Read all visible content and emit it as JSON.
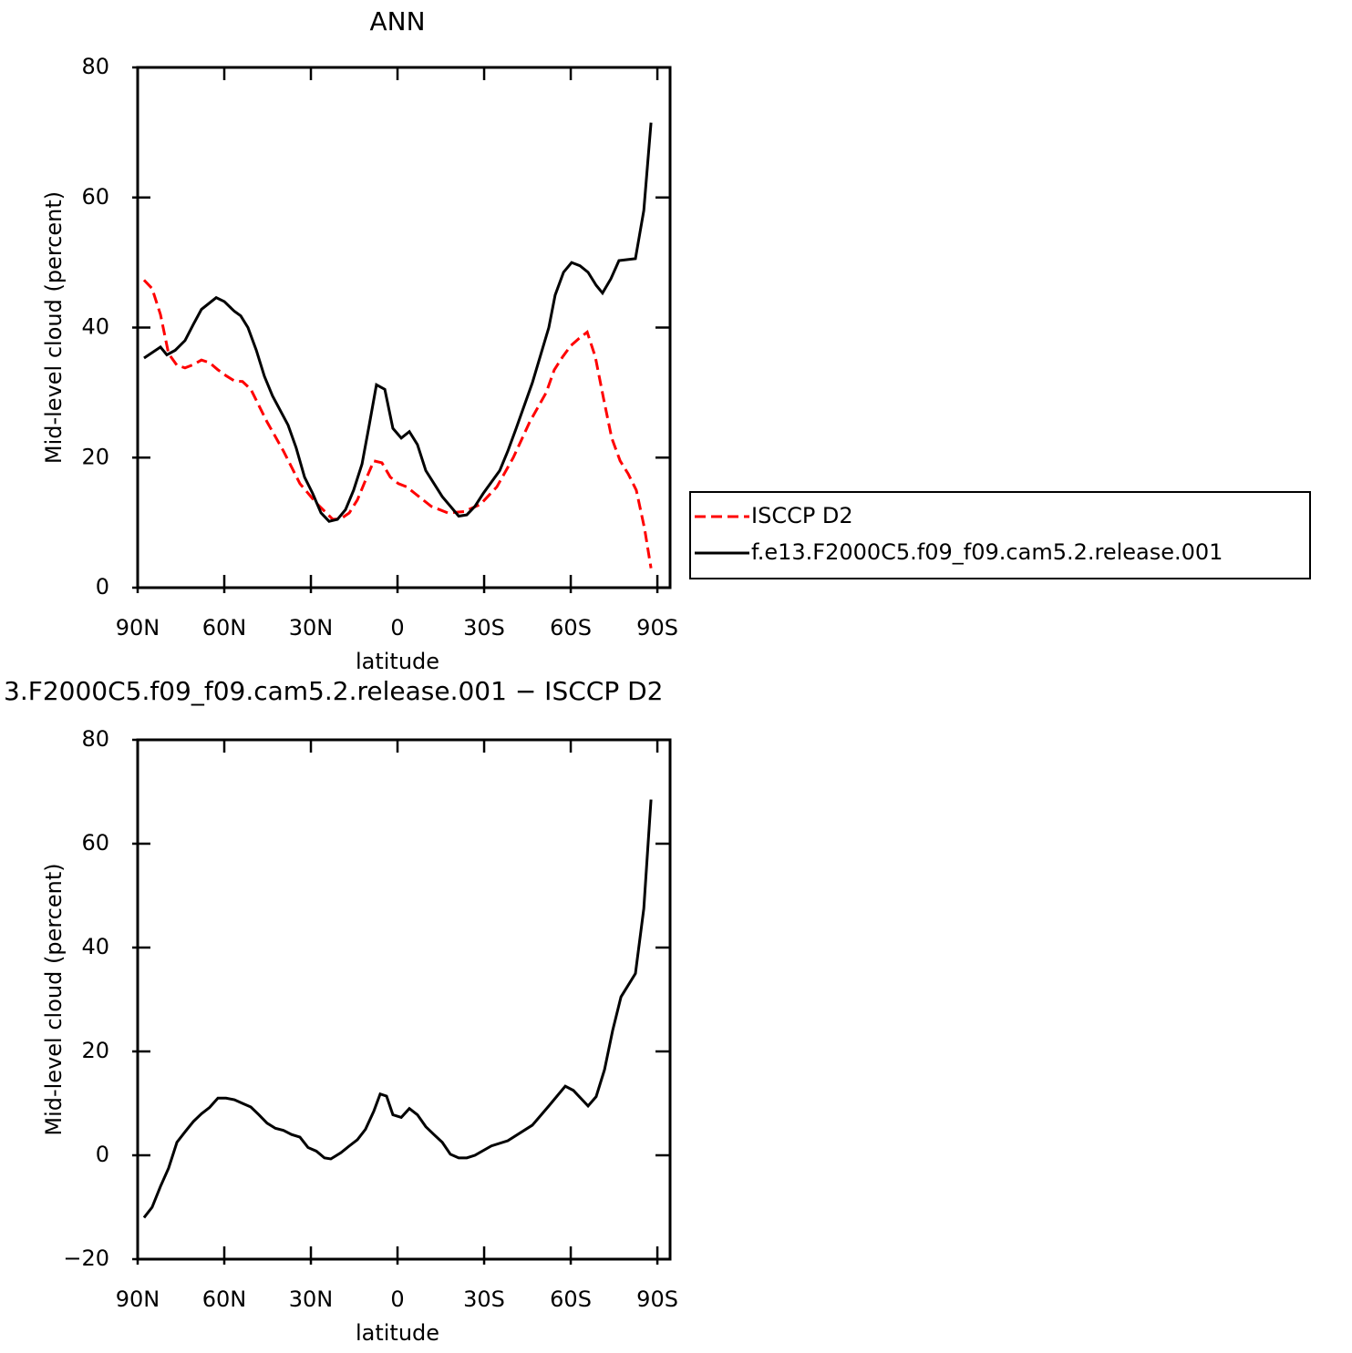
{
  "chart_data": [
    {
      "type": "line",
      "title": "ANN",
      "xlabel": "latitude",
      "ylabel": "Mid-level cloud (percent)",
      "xlim": [
        90,
        -94.4
      ],
      "ylim": [
        0,
        80
      ],
      "xticks": [
        {
          "value": 90,
          "label": "90N"
        },
        {
          "value": 60,
          "label": "60N"
        },
        {
          "value": 30,
          "label": "30N"
        },
        0,
        {
          "value": -30,
          "label": "30S"
        },
        {
          "value": -60,
          "label": "60S"
        },
        {
          "value": -90,
          "label": "90S"
        }
      ],
      "yticks": [
        0,
        20,
        40,
        60,
        80
      ],
      "legend": "outside-right",
      "series": [
        {
          "name": "ISCCP D2",
          "color": "#ff0000",
          "dash": true,
          "x": [
            87.8,
            85,
            82.1,
            79.3,
            76.4,
            73.6,
            70.7,
            67.9,
            65.1,
            62.2,
            59.4,
            56.5,
            53.7,
            50.8,
            48,
            45.2,
            39.5,
            33.8,
            28.1,
            22.4,
            19.6,
            16.7,
            13.9,
            11.1,
            8.2,
            5.4,
            2.5,
            -0.3,
            -3.2,
            -6,
            -11.7,
            -17.4,
            -23.1,
            -28.7,
            -34.4,
            -40.1,
            -45.8,
            -51.5,
            -54.3,
            -57.2,
            -60,
            -62.8,
            -65.7,
            -68.5,
            -71.4,
            -74.2,
            -77.1,
            -79.9,
            -82.7,
            -85.6,
            -87.8
          ],
          "values": [
            47.3,
            46,
            42,
            36,
            34.2,
            33.8,
            34.3,
            35,
            34.6,
            33.5,
            32.6,
            31.8,
            31.7,
            30.5,
            28,
            25.5,
            21,
            16,
            13,
            10.5,
            10.6,
            11.5,
            13.5,
            16.5,
            19.5,
            19.2,
            17,
            16,
            15.5,
            14.5,
            12.5,
            11.5,
            11.7,
            12.8,
            15.5,
            20,
            25.5,
            30,
            33.5,
            35.5,
            37.2,
            38.3,
            39.3,
            35.5,
            29,
            23,
            19.5,
            17.5,
            15,
            9,
            3
          ]
        },
        {
          "name": "f.e13.F2000C5.f09_f09.cam5.2.release.001",
          "color": "#000000",
          "dash": false,
          "x": [
            87.8,
            82.1,
            79.9,
            77,
            73.6,
            70.7,
            67.9,
            62.8,
            60,
            56.5,
            54.3,
            51.8,
            48.9,
            46.1,
            43.3,
            37.9,
            35.1,
            32.2,
            29.4,
            26.5,
            23.7,
            20.8,
            18,
            15.2,
            12.3,
            9.8,
            7.3,
            4.4,
            1.6,
            -1.3,
            -4.1,
            -6.9,
            -9.8,
            -15.5,
            -21.2,
            -24,
            -26.8,
            -29.7,
            -35.4,
            -38.2,
            -41.1,
            -46.7,
            -52.4,
            -54.6,
            -57.5,
            -60.3,
            -63.2,
            -66,
            -68.8,
            -71,
            -73.9,
            -76.7,
            -82.4,
            -85.3,
            -87.8
          ],
          "values": [
            35.3,
            37,
            35.8,
            36.5,
            38,
            40.5,
            42.8,
            44.6,
            44,
            42.5,
            41.8,
            40,
            36.5,
            32.5,
            29.5,
            25,
            21.5,
            17,
            14.5,
            11.5,
            10.2,
            10.5,
            12,
            15,
            19,
            25,
            31.2,
            30.5,
            24.5,
            23,
            24,
            22,
            18,
            14,
            11,
            11.2,
            12.5,
            14.5,
            18,
            21,
            24.5,
            31.5,
            40,
            45,
            48.5,
            50,
            49.5,
            48.5,
            46.5,
            45.3,
            47.5,
            50.3,
            50.6,
            58,
            71.5
          ]
        }
      ]
    },
    {
      "type": "line",
      "title": "3.F2000C5.f09_f09.cam5.2.release.001 − ISCCP D2",
      "xlabel": "latitude",
      "ylabel": "Mid-level cloud (percent)",
      "xlim": [
        90,
        -94.4
      ],
      "ylim": [
        -20,
        80
      ],
      "xticks": [
        {
          "value": 90,
          "label": "90N"
        },
        {
          "value": 60,
          "label": "60N"
        },
        {
          "value": 30,
          "label": "30N"
        },
        0,
        {
          "value": -30,
          "label": "30S"
        },
        {
          "value": -60,
          "label": "60S"
        },
        {
          "value": -90,
          "label": "90S"
        }
      ],
      "yticks": [
        {
          "value": -20,
          "label": "−20"
        },
        0,
        20,
        40,
        60,
        80
      ],
      "series": [
        {
          "color": "#000000",
          "dash": false,
          "x": [
            87.8,
            85,
            82.1,
            79.3,
            76.4,
            73.6,
            70.7,
            67.9,
            65.1,
            62.2,
            59.4,
            56.5,
            53.7,
            50.8,
            48,
            45.2,
            42.3,
            39.5,
            36.7,
            33.8,
            31,
            28.1,
            25.3,
            23.1,
            19.6,
            16.7,
            13.9,
            11.1,
            8.2,
            6,
            3.8,
            1.6,
            -1.3,
            -4.1,
            -6.9,
            -9.8,
            -12.6,
            -15.5,
            -18.3,
            -21.2,
            -24,
            -26.8,
            -32.5,
            -38.2,
            -46.7,
            -52.4,
            -58.1,
            -60.9,
            -66,
            -68.8,
            -71.7,
            -74.5,
            -77.4,
            -82.4,
            -85.3,
            -87.8
          ],
          "values": [
            -12,
            -10,
            -6,
            -2.5,
            2.5,
            4.5,
            6.5,
            8,
            9.2,
            11,
            11,
            10.7,
            10,
            9.3,
            7.8,
            6.2,
            5.2,
            4.8,
            4,
            3.5,
            1.5,
            0.8,
            -0.5,
            -0.7,
            0.5,
            1.8,
            3,
            5,
            8.5,
            11.8,
            11.4,
            7.8,
            7.3,
            9,
            7.8,
            5.5,
            4,
            2.5,
            0.2,
            -0.5,
            -0.5,
            0,
            1.8,
            2.8,
            5.8,
            9.5,
            13.3,
            12.5,
            9.5,
            11.3,
            16.5,
            24,
            30.5,
            35,
            47.5,
            68.5
          ]
        }
      ]
    }
  ]
}
